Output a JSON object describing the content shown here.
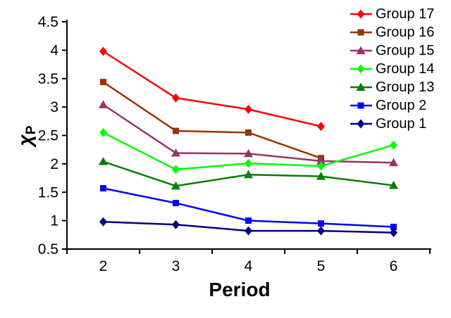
{
  "chart_data": {
    "type": "line",
    "title": "",
    "xlabel": "Period",
    "ylabel": "χ",
    "ylabel_sub": "P",
    "x_categories": [
      "2",
      "3",
      "4",
      "5",
      "6"
    ],
    "y_ticks": [
      "0.5",
      "1",
      "1.5",
      "2",
      "2.5",
      "3",
      "3.5",
      "4",
      "4.5"
    ],
    "ylim": [
      0.5,
      4.5
    ],
    "grid": false,
    "legend_position": "top-right",
    "axis_color": "#000000",
    "background_color": "#ffffff",
    "series": [
      {
        "name": "Group 17",
        "color": "#ff0000",
        "marker": "diamond",
        "values": [
          3.98,
          3.16,
          2.96,
          2.66,
          null
        ]
      },
      {
        "name": "Group 16",
        "color": "#993300",
        "marker": "square",
        "values": [
          3.44,
          2.58,
          2.55,
          2.1,
          null
        ]
      },
      {
        "name": "Group 15",
        "color": "#993366",
        "marker": "triangle",
        "values": [
          3.04,
          2.19,
          2.18,
          2.05,
          2.02
        ]
      },
      {
        "name": "Group 14",
        "color": "#00ff00",
        "marker": "diamond",
        "values": [
          2.55,
          1.9,
          2.01,
          1.96,
          2.33
        ]
      },
      {
        "name": "Group 13",
        "color": "#008000",
        "marker": "triangle",
        "values": [
          2.04,
          1.61,
          1.81,
          1.78,
          1.62
        ]
      },
      {
        "name": "Group 2",
        "color": "#0000ff",
        "marker": "square",
        "values": [
          1.57,
          1.31,
          1.0,
          0.95,
          0.89
        ]
      },
      {
        "name": "Group 1",
        "color": "#000080",
        "marker": "diamond",
        "values": [
          0.98,
          0.93,
          0.82,
          0.82,
          0.79
        ]
      }
    ]
  }
}
